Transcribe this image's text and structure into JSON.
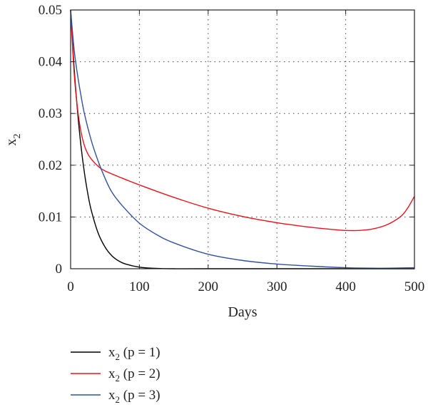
{
  "chart_data": {
    "type": "line",
    "xlabel": "Days",
    "ylabel": "x",
    "ylabel_sub": "2",
    "xlim": [
      0,
      500
    ],
    "ylim": [
      0,
      0.05
    ],
    "x_ticks": [
      0,
      100,
      200,
      300,
      400,
      500
    ],
    "x_tick_labels": [
      "0",
      "100",
      "200",
      "300",
      "400",
      "500"
    ],
    "y_ticks": [
      0,
      0.01,
      0.02,
      0.03,
      0.04,
      0.05
    ],
    "y_tick_labels": [
      "0",
      "0.01",
      "0.02",
      "0.03",
      "0.04",
      "0.05"
    ],
    "grid": true,
    "grid_style": "dotted",
    "legend_position": "bottom-left, below plot",
    "series": [
      {
        "name": "x2 (p = 1)",
        "legend_main": "x",
        "legend_sub": "2",
        "legend_rest": " (p = 1)",
        "color": "#000000",
        "x": [
          0,
          5,
          10,
          15,
          20,
          25,
          30,
          40,
          50,
          60,
          70,
          80,
          100,
          120,
          150,
          200,
          300,
          400,
          500
        ],
        "y": [
          0.05,
          0.039,
          0.0305,
          0.0238,
          0.0186,
          0.0145,
          0.0113,
          0.0069,
          0.0042,
          0.0025,
          0.0015,
          0.0009,
          0.0003,
          0.0001,
          0.0,
          0.0,
          0.0,
          0.0,
          0.0
        ]
      },
      {
        "name": "x2 (p = 2)",
        "legend_main": "x",
        "legend_sub": "2",
        "legend_rest": " (p = 2)",
        "color": "#e8141b",
        "x": [
          0,
          5,
          10,
          15,
          20,
          25,
          30,
          40,
          50,
          75,
          100,
          150,
          200,
          250,
          300,
          350,
          380,
          400,
          420,
          440,
          460,
          480,
          490,
          500
        ],
        "y": [
          0.05,
          0.038,
          0.031,
          0.0265,
          0.0238,
          0.0222,
          0.0212,
          0.0198,
          0.0189,
          0.0175,
          0.0162,
          0.0138,
          0.0117,
          0.0101,
          0.0089,
          0.008,
          0.0076,
          0.0074,
          0.0074,
          0.0077,
          0.0085,
          0.0101,
          0.0117,
          0.014
        ]
      },
      {
        "name": "x2 (p = 3)",
        "legend_main": "x",
        "legend_sub": "2",
        "legend_rest": " (p = 3)",
        "color": "#3350a3",
        "x": [
          0,
          5,
          10,
          15,
          20,
          30,
          40,
          50,
          60,
          75,
          100,
          125,
          150,
          200,
          250,
          300,
          350,
          400,
          450,
          500
        ],
        "y": [
          0.05,
          0.0425,
          0.0375,
          0.0335,
          0.03,
          0.0248,
          0.0208,
          0.0175,
          0.0148,
          0.0122,
          0.0088,
          0.0066,
          0.005,
          0.0028,
          0.0016,
          0.0009,
          0.0005,
          0.0002,
          0.0001,
          0.0002
        ]
      }
    ]
  }
}
